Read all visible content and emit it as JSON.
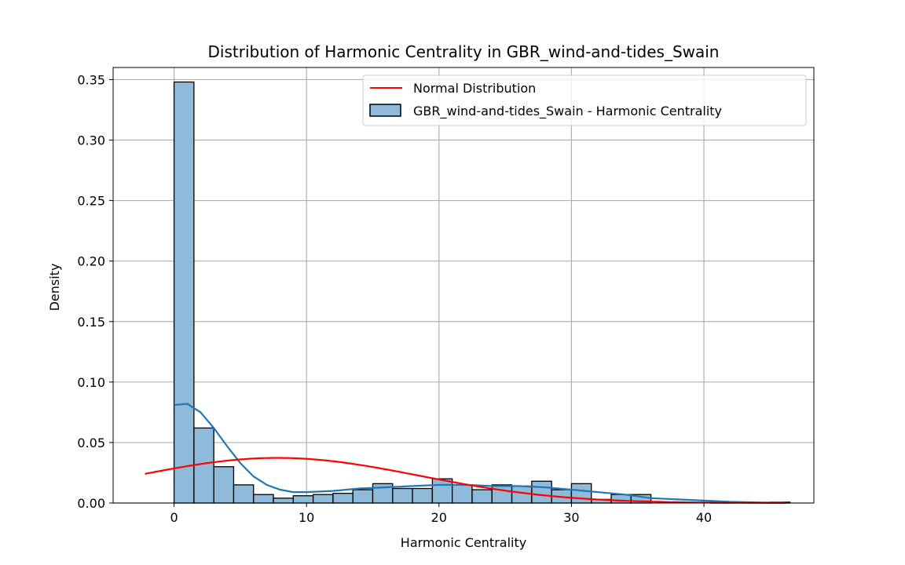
{
  "chart_data": {
    "type": "bar",
    "title": "Distribution of Harmonic Centrality in GBR_wind-and-tides_Swain",
    "xlabel": "Harmonic Centrality",
    "ylabel": "Density",
    "xlim": [
      -4.6,
      48.3
    ],
    "ylim": [
      0,
      0.36
    ],
    "xticks": [
      0,
      10,
      20,
      30,
      40
    ],
    "yticks": [
      0.0,
      0.05,
      0.1,
      0.15,
      0.2,
      0.25,
      0.3,
      0.35
    ],
    "grid": true,
    "legend_position": "top-right",
    "colors": {
      "bar_fill": "#8fbad9",
      "bar_edge": "#000000",
      "kde": "#1f77b4",
      "normal": "#ff0000",
      "grid": "#b0b0b0"
    },
    "histogram": {
      "name": "GBR_wind-and-tides_Swain - Harmonic Centrality",
      "bin_start": 0,
      "bin_width": 1.5,
      "values": [
        0.348,
        0.062,
        0.03,
        0.015,
        0.007,
        0.004,
        0.006,
        0.007,
        0.008,
        0.011,
        0.016,
        0.012,
        0.012,
        0.02,
        0.015,
        0.011,
        0.015,
        0.014,
        0.018,
        0.011,
        0.016,
        0.003,
        0.007,
        0.007,
        0.0,
        0.0,
        0.0,
        0.001,
        0.0,
        0.0,
        0.0007
      ]
    },
    "kde": {
      "x": [
        0,
        1,
        2,
        3,
        4,
        5,
        6,
        7,
        8,
        9,
        10,
        12,
        14,
        16,
        18,
        20,
        22,
        24,
        26,
        28,
        30,
        32,
        34,
        36,
        38,
        40,
        42,
        44,
        46
      ],
      "y": [
        0.081,
        0.082,
        0.075,
        0.062,
        0.047,
        0.033,
        0.022,
        0.015,
        0.011,
        0.009,
        0.009,
        0.01,
        0.012,
        0.013,
        0.014,
        0.015,
        0.015,
        0.014,
        0.014,
        0.013,
        0.011,
        0.009,
        0.007,
        0.004,
        0.003,
        0.002,
        0.001,
        0.0005,
        0.0002
      ]
    },
    "normal": {
      "name": "Normal Distribution",
      "mean": 7.8,
      "std": 10.7,
      "x_range": [
        -2.2,
        46.2
      ]
    }
  }
}
